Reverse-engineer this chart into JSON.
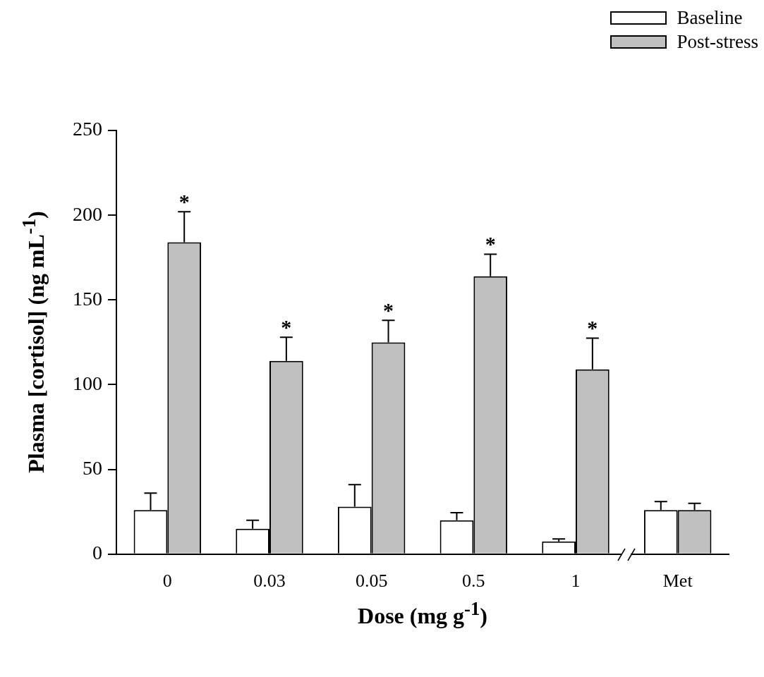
{
  "chart_data": {
    "type": "bar",
    "xlabel": "Dose (mg g$^{-1}$)",
    "ylabel": "Plasma [cortisol] (ng mL$^{-1}$)",
    "categories": [
      "0",
      "0.03",
      "0.05",
      "0.5",
      "1",
      "Met"
    ],
    "series": [
      {
        "name": "Baseline",
        "color": "#ffffff",
        "values": [
          26,
          15,
          28,
          20,
          7.5,
          26
        ],
        "errors": [
          [
            26,
            36
          ],
          [
            15,
            20
          ],
          [
            28,
            41
          ],
          [
            20,
            24.5
          ],
          [
            7.5,
            9
          ],
          [
            26,
            31
          ]
        ]
      },
      {
        "name": "Post-stress",
        "color": "#c0c0c0",
        "values": [
          184,
          114,
          125,
          164,
          109,
          26
        ],
        "errors": [
          [
            184,
            202
          ],
          [
            114,
            128
          ],
          [
            125,
            138
          ],
          [
            164,
            177
          ],
          [
            109,
            127.5
          ],
          [
            26,
            30
          ]
        ]
      }
    ],
    "ylim": [
      0,
      250
    ],
    "yticks": [
      0,
      50,
      100,
      150,
      200,
      250
    ],
    "grid": false,
    "legend": "top right",
    "annotations": [
      {
        "text": "*",
        "x": "0",
        "y": 184
      },
      {
        "text": "*",
        "x": "0.03",
        "y": 114
      },
      {
        "text": "*",
        "x": "0.05",
        "y": 125
      },
      {
        "text": "*",
        "x": "0.5",
        "y": 164
      },
      {
        "text": "*",
        "x": "1",
        "y": 109
      }
    ]
  }
}
